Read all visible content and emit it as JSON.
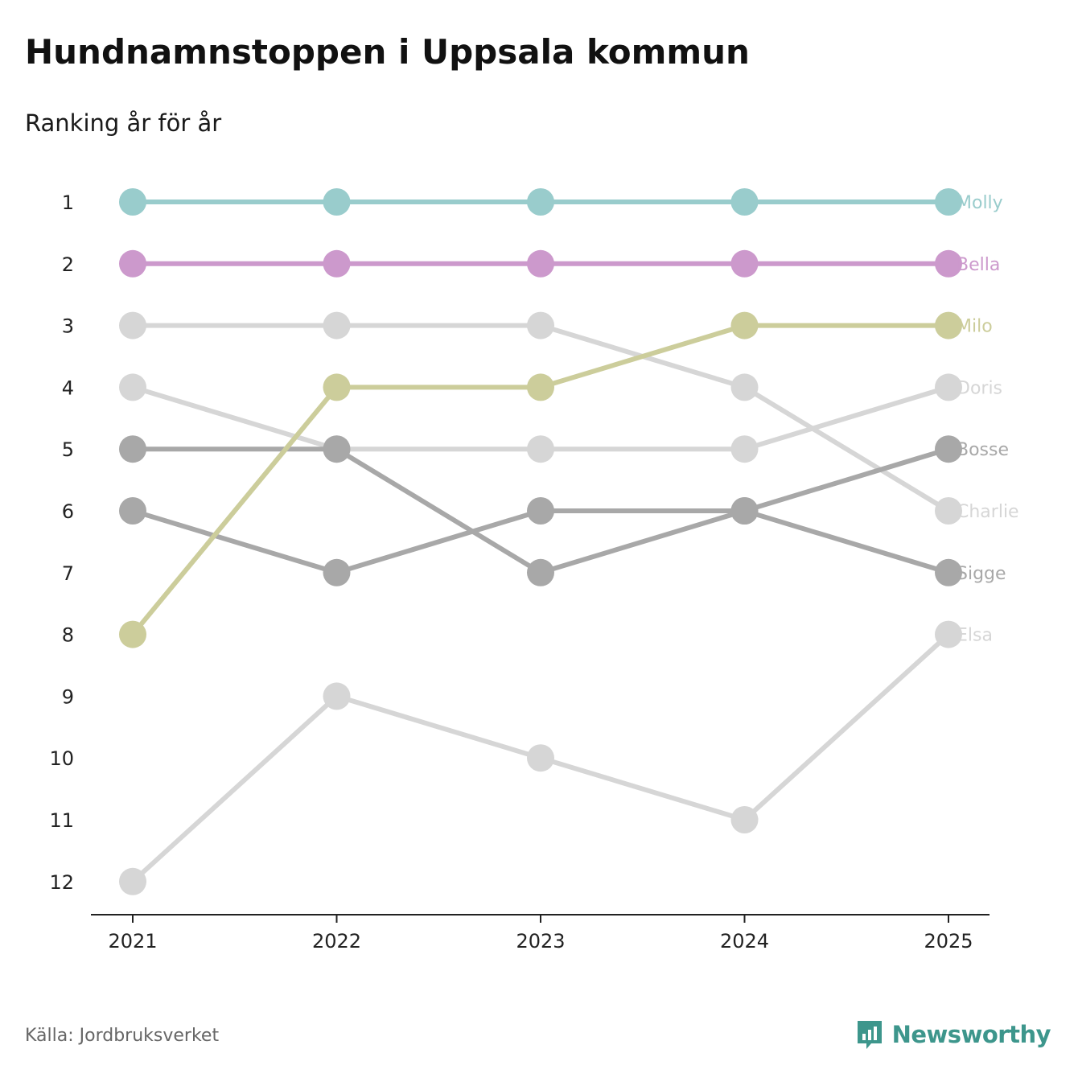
{
  "title": "Hundnamnstoppen i Uppsala kommun",
  "subtitle": "Ranking år för år",
  "source": "Källa: Jordbruksverket",
  "brand": {
    "name": "Newsworthy",
    "icon": "newsworthy-logo-icon",
    "color": "#3d968c"
  },
  "chart_data": {
    "type": "line",
    "variant": "bump",
    "title": "Hundnamnstoppen i Uppsala kommun",
    "subtitle": "Ranking år för år",
    "xlabel": "",
    "ylabel": "",
    "x": [
      "2021",
      "2022",
      "2023",
      "2024",
      "2025"
    ],
    "y_ticks": [
      "1",
      "2",
      "3",
      "4",
      "5",
      "6",
      "7",
      "8",
      "9",
      "10",
      "11",
      "12"
    ],
    "ylim": [
      1,
      12
    ],
    "y_inverted": true,
    "grid": false,
    "legend": "labels at line ends",
    "series": [
      {
        "name": "Elsa",
        "ranks": [
          12,
          9,
          10,
          11,
          8
        ],
        "color": "#d6d6d6"
      },
      {
        "name": "Charlie",
        "ranks": [
          3,
          3,
          3,
          4,
          6
        ],
        "color": "#d6d6d6"
      },
      {
        "name": "Doris",
        "ranks": [
          4,
          5,
          5,
          5,
          4
        ],
        "color": "#d6d6d6"
      },
      {
        "name": "Sigge",
        "ranks": [
          5,
          5,
          7,
          6,
          7
        ],
        "color": "#a8a8a8"
      },
      {
        "name": "Bosse",
        "ranks": [
          6,
          7,
          6,
          6,
          5
        ],
        "color": "#a8a8a8"
      },
      {
        "name": "Milo",
        "ranks": [
          8,
          4,
          4,
          3,
          3
        ],
        "color": "#cccd9b"
      },
      {
        "name": "Bella",
        "ranks": [
          2,
          2,
          2,
          2,
          2
        ],
        "color": "#cc99cc"
      },
      {
        "name": "Molly",
        "ranks": [
          1,
          1,
          1,
          1,
          1
        ],
        "color": "#99cccc"
      }
    ]
  }
}
